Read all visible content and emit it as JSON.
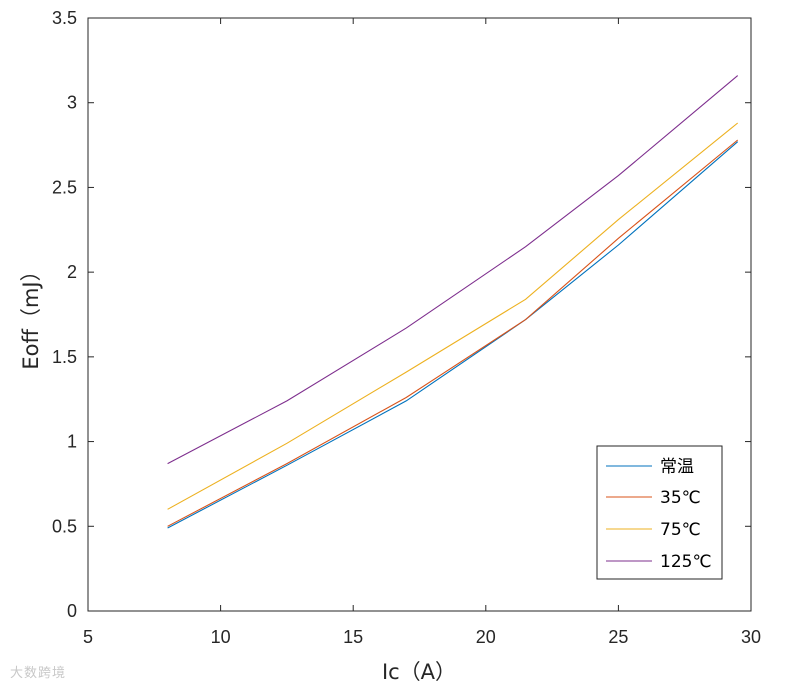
{
  "chart_data": {
    "type": "line",
    "xlabel": "Ic（A）",
    "ylabel": "Eoff（mJ）",
    "xlim": [
      5,
      30
    ],
    "ylim": [
      0,
      3.5
    ],
    "xticks": [
      5,
      10,
      15,
      20,
      25,
      30
    ],
    "yticks": [
      0,
      0.5,
      1,
      1.5,
      2,
      2.5,
      3,
      3.5
    ],
    "xtick_labels": [
      "5",
      "10",
      "15",
      "20",
      "25",
      "30"
    ],
    "ytick_labels": [
      "0",
      "0.5",
      "1",
      "1.5",
      "2",
      "2.5",
      "3",
      "3.5"
    ],
    "grid": false,
    "legend_position": "lower-right",
    "x": [
      8,
      12.5,
      17,
      21.5,
      25,
      29.5
    ],
    "series": [
      {
        "name": "常温",
        "color": "#0072BD",
        "values": [
          0.49,
          0.86,
          1.24,
          1.72,
          2.16,
          2.77
        ]
      },
      {
        "name": "35℃",
        "color": "#D95319",
        "values": [
          0.5,
          0.87,
          1.26,
          1.72,
          2.2,
          2.78
        ]
      },
      {
        "name": "75℃",
        "color": "#EDB120",
        "values": [
          0.6,
          0.99,
          1.41,
          1.84,
          2.31,
          2.88
        ]
      },
      {
        "name": "125℃",
        "color": "#7E2F8E",
        "values": [
          0.87,
          1.24,
          1.67,
          2.15,
          2.57,
          3.16
        ]
      }
    ]
  },
  "watermark": "大数跨境"
}
